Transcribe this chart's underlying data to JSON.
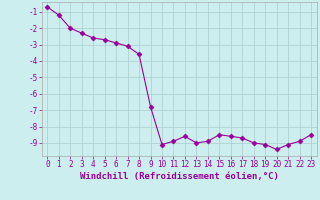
{
  "x": [
    0,
    1,
    2,
    3,
    4,
    5,
    6,
    7,
    8,
    9,
    10,
    11,
    12,
    13,
    14,
    15,
    16,
    17,
    18,
    19,
    20,
    21,
    22,
    23
  ],
  "y": [
    -0.7,
    -1.2,
    -2.0,
    -2.3,
    -2.6,
    -2.7,
    -2.9,
    -3.1,
    -3.6,
    -6.8,
    -9.1,
    -8.9,
    -8.6,
    -9.0,
    -8.9,
    -8.5,
    -8.6,
    -8.7,
    -9.0,
    -9.1,
    -9.4,
    -9.1,
    -8.9,
    -8.5
  ],
  "line_color": "#990099",
  "marker": "D",
  "markersize": 2.5,
  "linewidth": 0.8,
  "bg_color": "#cceeee",
  "grid_color": "#aacccc",
  "xlabel": "Windchill (Refroidissement éolien,°C)",
  "xlabel_color": "#990099",
  "tick_color": "#990099",
  "ylim": [
    -9.8,
    -0.4
  ],
  "yticks": [
    -9,
    -8,
    -7,
    -6,
    -5,
    -4,
    -3,
    -2,
    -1
  ],
  "xlim": [
    -0.5,
    23.5
  ],
  "xticks": [
    0,
    1,
    2,
    3,
    4,
    5,
    6,
    7,
    8,
    9,
    10,
    11,
    12,
    13,
    14,
    15,
    16,
    17,
    18,
    19,
    20,
    21,
    22,
    23
  ],
  "font_family": "monospace",
  "xlabel_fontsize": 6.5,
  "tick_fontsize": 5.5,
  "spine_color": "#aaaaaa"
}
